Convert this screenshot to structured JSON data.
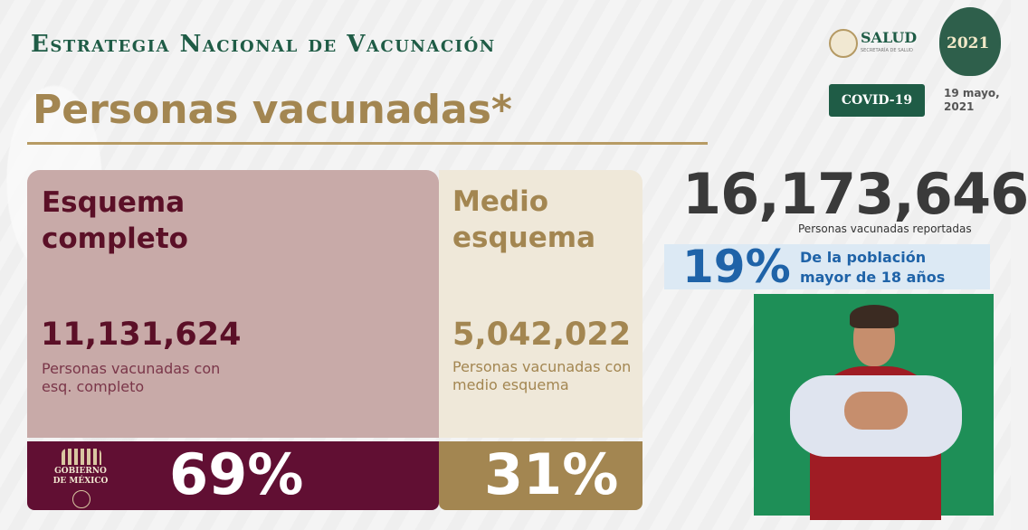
{
  "header": {
    "title": "Estrategia Nacional de Vacunación",
    "subtitle": "Personas vacunadas*"
  },
  "logos": {
    "salud": "SALUD",
    "salud_sub": "SECRETARÍA DE SALUD",
    "emblem_year": "2021",
    "gobierno": "GOBIERNO DE MÉXICO"
  },
  "badge": {
    "label": "COVID-19"
  },
  "date": "19 mayo, 2021",
  "panels": {
    "complete": {
      "heading": "Esquema completo",
      "number": "11,131,624",
      "caption": "Personas vacunadas con esq. completo",
      "percent": "69%"
    },
    "half": {
      "heading": "Medio esquema",
      "number": "5,042,022",
      "caption": "Personas vacunadas con medio esquema",
      "percent": "31%"
    }
  },
  "total": {
    "number": "16,173,646",
    "caption": "Personas vacunadas reportadas"
  },
  "population": {
    "percent": "19%",
    "text": "De la población mayor de 18 años"
  },
  "colors": {
    "green": "#1f5c46",
    "gold": "#a38651",
    "wine": "#610f33",
    "blue": "#1f63a8"
  }
}
